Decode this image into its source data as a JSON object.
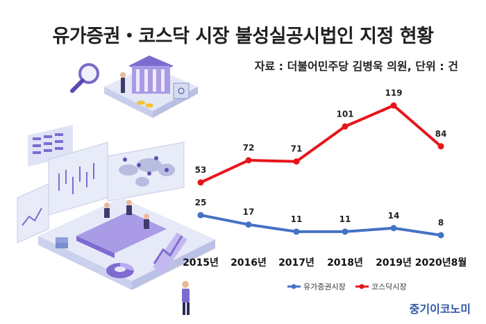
{
  "title": "유가증권・코스닥 시장 불성실공시법인 지정 현황",
  "source": "자료 : 더불어민주당 김병욱 의원, 단위 : 건",
  "brand": "중기이코노미",
  "colors": {
    "kospi": "#4472c4",
    "kosdaq": "#e8141b",
    "illustration_purple": "#8e7cd8",
    "illustration_light": "#dde2f3"
  },
  "chart_data": {
    "type": "line",
    "categories": [
      "2015년",
      "2016년",
      "2017년",
      "2018년",
      "2019년",
      "2020년8월"
    ],
    "series": [
      {
        "name": "유가증권시장",
        "values": [
          25,
          17,
          11,
          11,
          14,
          8
        ]
      },
      {
        "name": "코스닥시장",
        "values": [
          53,
          72,
          71,
          101,
          119,
          84
        ]
      }
    ],
    "ylim": [
      0,
      130
    ],
    "grid": false,
    "legend_position": "bottom-right",
    "data_labels": true
  }
}
